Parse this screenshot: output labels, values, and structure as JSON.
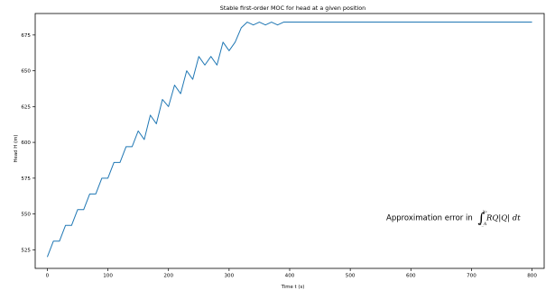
{
  "chart_data": {
    "type": "line",
    "title": "Stable first-order MOC for head at a given position",
    "xlabel": "Time t (s)",
    "ylabel": "Head H (m)",
    "xlim": [
      -20,
      820
    ],
    "ylim": [
      512,
      690
    ],
    "xticks": [
      0,
      100,
      200,
      300,
      400,
      500,
      600,
      700,
      800
    ],
    "yticks": [
      525,
      550,
      575,
      600,
      625,
      650,
      675
    ],
    "grid": false,
    "line_color": "#1f77b4",
    "annotation": {
      "prefix": "Approximation error in ",
      "integral_sign": "∫",
      "upper_limit": "xₚ",
      "lower_limit": "x_A",
      "integrand": "RQ|Q| dt"
    },
    "series": [
      {
        "x": [
          0,
          10,
          20,
          30,
          40,
          50,
          60,
          70,
          80,
          90,
          100,
          110,
          120,
          130,
          140,
          150,
          160,
          170,
          180,
          190,
          200,
          210,
          220,
          230,
          240,
          250,
          260,
          270,
          280,
          290,
          300,
          310,
          320,
          330,
          340,
          350,
          360,
          370,
          380,
          390,
          400,
          800
        ],
        "y": [
          520,
          531,
          531,
          542,
          542,
          553,
          553,
          564,
          564,
          575,
          575,
          586,
          586,
          597,
          597,
          608,
          602,
          619,
          613,
          630,
          625,
          640,
          634,
          650,
          644,
          660,
          654,
          660,
          654,
          670,
          664,
          670,
          680,
          684,
          682,
          684,
          682,
          684,
          682,
          684,
          684,
          684
        ]
      }
    ]
  }
}
